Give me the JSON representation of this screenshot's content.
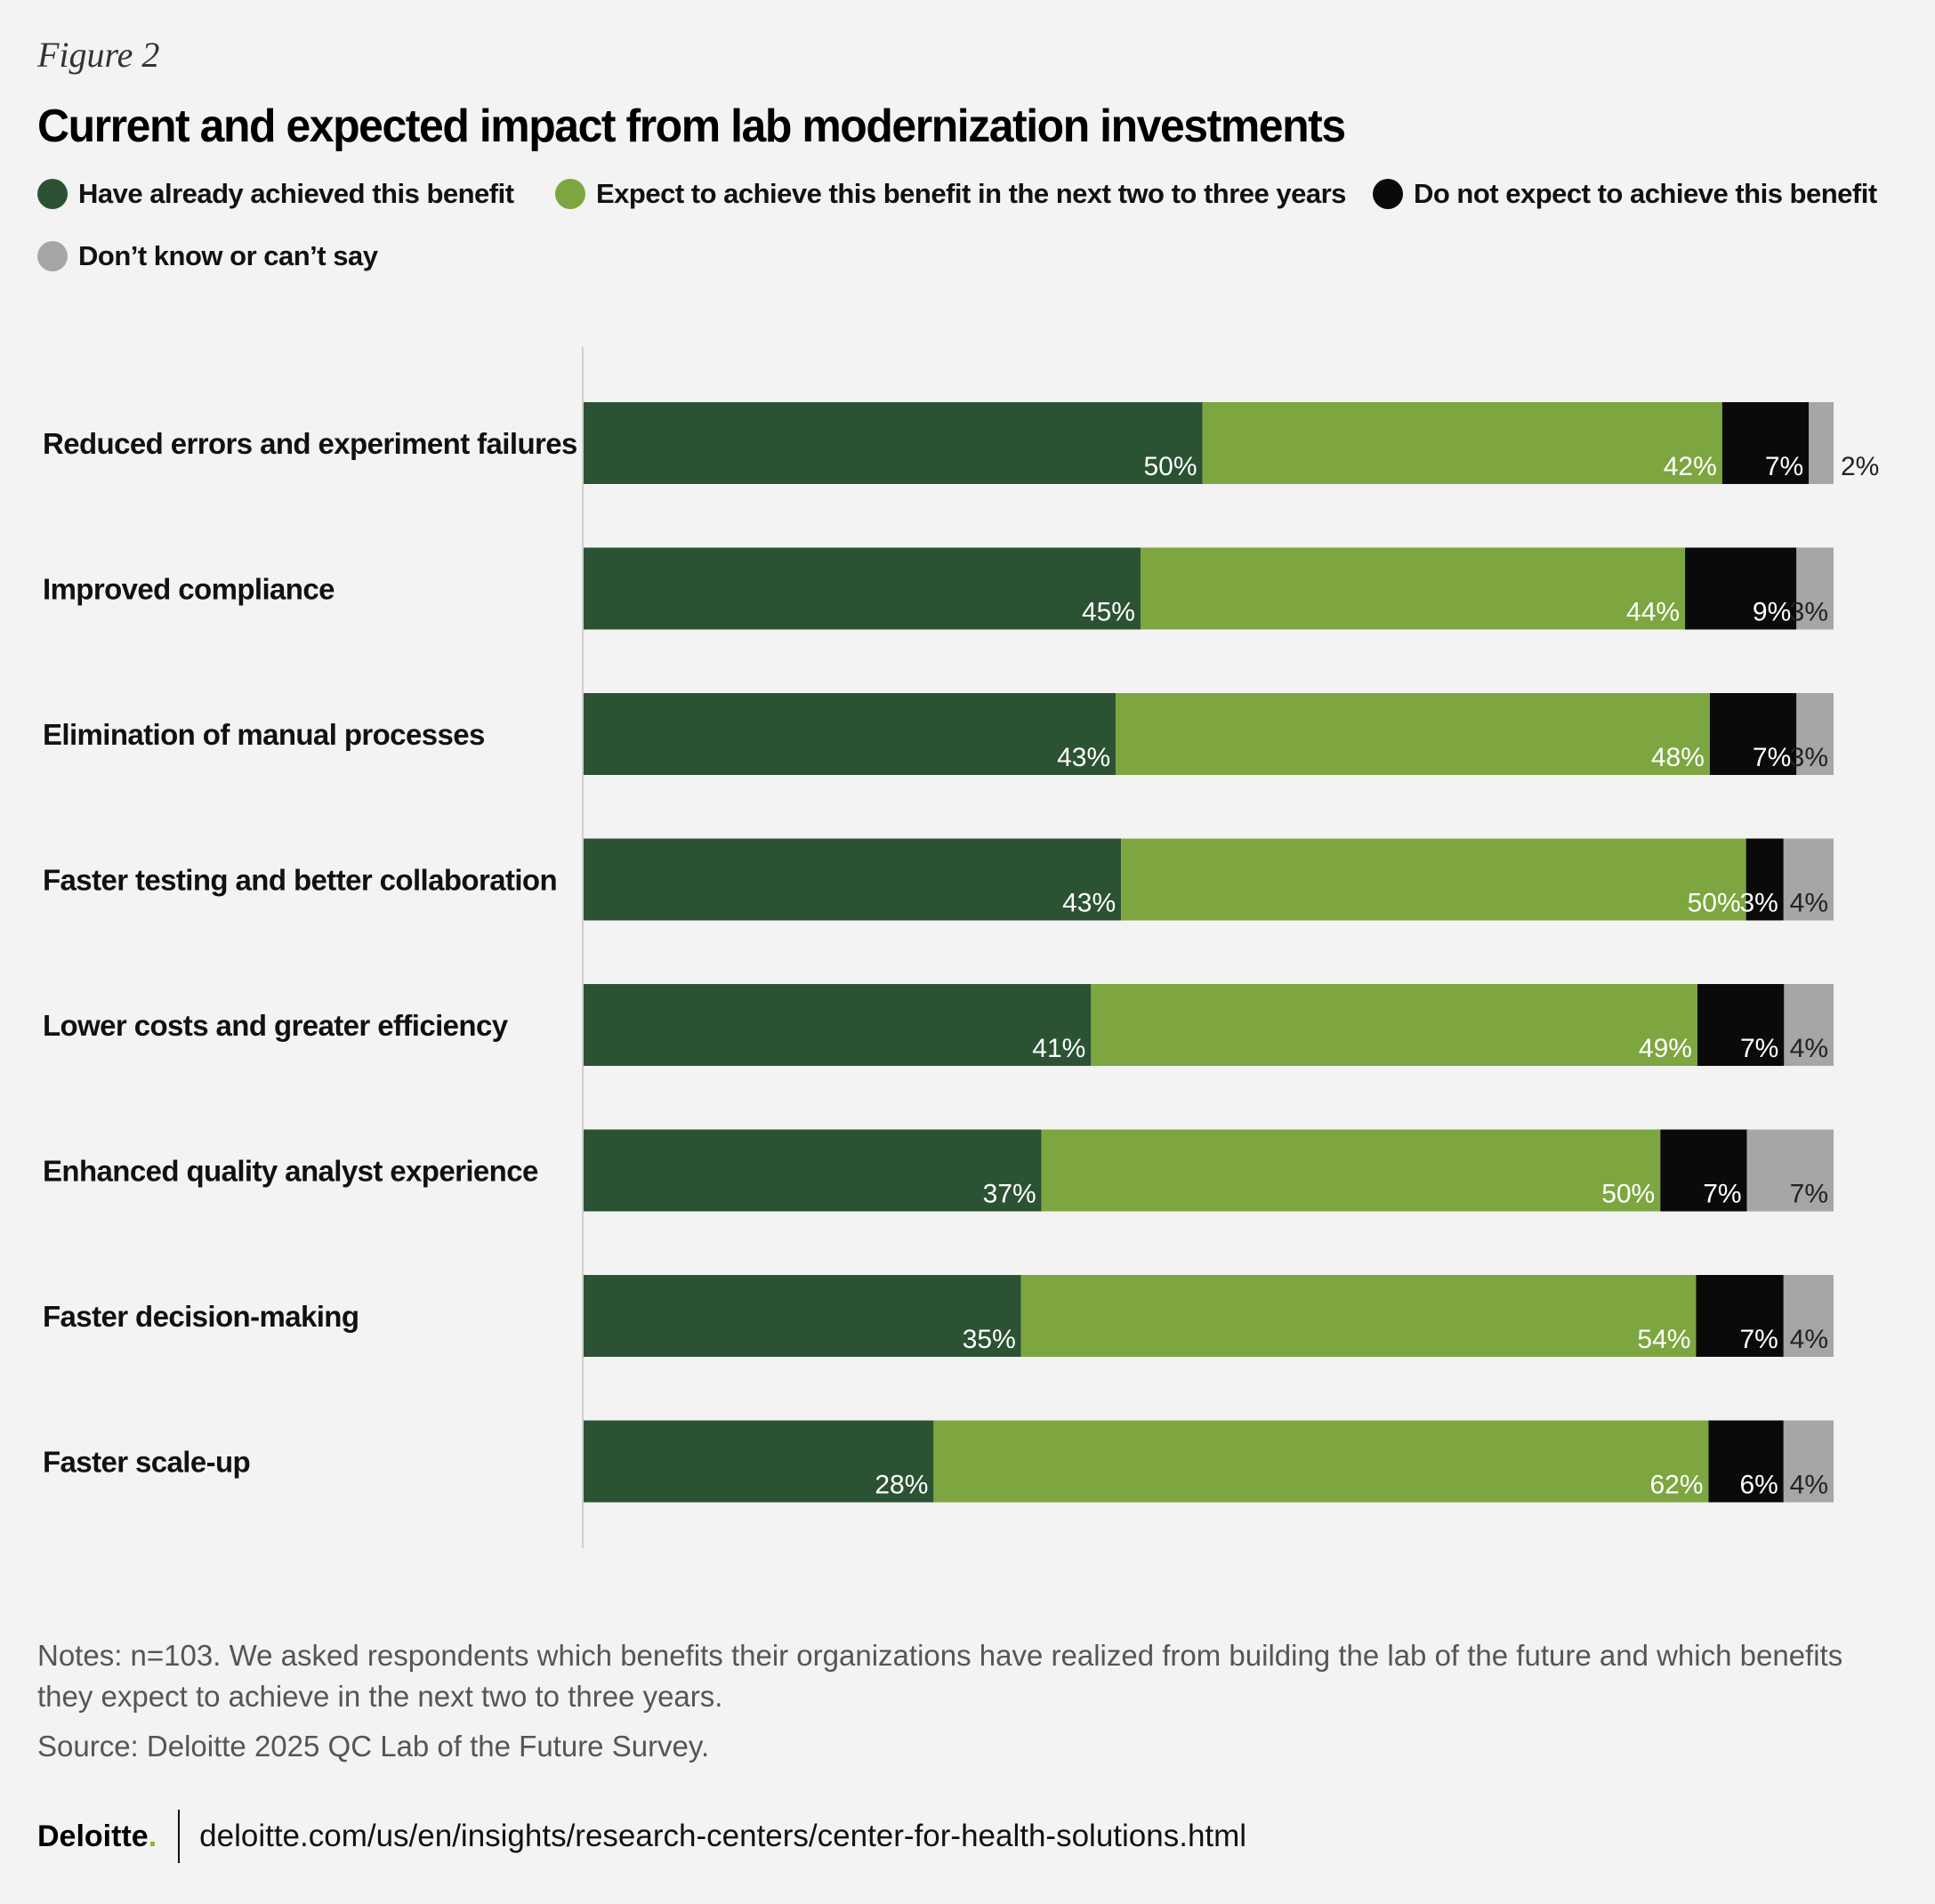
{
  "figure_label": "Figure 2",
  "title": "Current and expected impact from lab modernization investments",
  "legend": [
    {
      "label": "Have already achieved this benefit",
      "color": "#2c5234"
    },
    {
      "label": "Expect to achieve this benefit in the next two to three years",
      "color": "#7da640"
    },
    {
      "label": "Do not expect to achieve this benefit",
      "color": "#0a0a0a"
    },
    {
      "label": "Don’t know or can’t say",
      "color": "#a6a6a6"
    }
  ],
  "chart_data": {
    "type": "bar",
    "orientation": "horizontal",
    "stacked": true,
    "title": "Current and expected impact from lab modernization investments",
    "xlabel": "",
    "ylabel": "",
    "xlim": [
      0,
      100
    ],
    "categories": [
      "Reduced errors and experiment failures",
      "Improved compliance",
      "Elimination of manual processes",
      "Faster testing and better collaboration",
      "Lower costs and greater efficiency",
      "Enhanced quality analyst experience",
      "Faster decision-making",
      "Faster scale-up"
    ],
    "series": [
      {
        "name": "Have already achieved this benefit",
        "color": "#2c5234",
        "values": [
          50,
          45,
          43,
          43,
          41,
          37,
          35,
          28
        ]
      },
      {
        "name": "Expect to achieve this benefit in the next two to three years",
        "color": "#7da640",
        "values": [
          42,
          44,
          48,
          50,
          49,
          50,
          54,
          62
        ]
      },
      {
        "name": "Do not expect to achieve this benefit",
        "color": "#0a0a0a",
        "values": [
          7,
          9,
          7,
          3,
          7,
          7,
          7,
          6
        ]
      },
      {
        "name": "Don’t know or can’t say",
        "color": "#a6a6a6",
        "values": [
          2,
          3,
          3,
          4,
          4,
          7,
          4,
          4
        ]
      }
    ],
    "value_suffix": "%"
  },
  "notes": "Notes: n=103. We asked respondents which benefits their organizations have realized from building the lab of the future and which benefits they expect to achieve in the next two to three years.",
  "source": "Source: Deloitte 2025 QC Lab of the Future Survey.",
  "footer": {
    "brand": "Deloitte",
    "brand_dot": ".",
    "url": "deloitte.com/us/en/insights/research-centers/center-for-health-solutions.html"
  }
}
